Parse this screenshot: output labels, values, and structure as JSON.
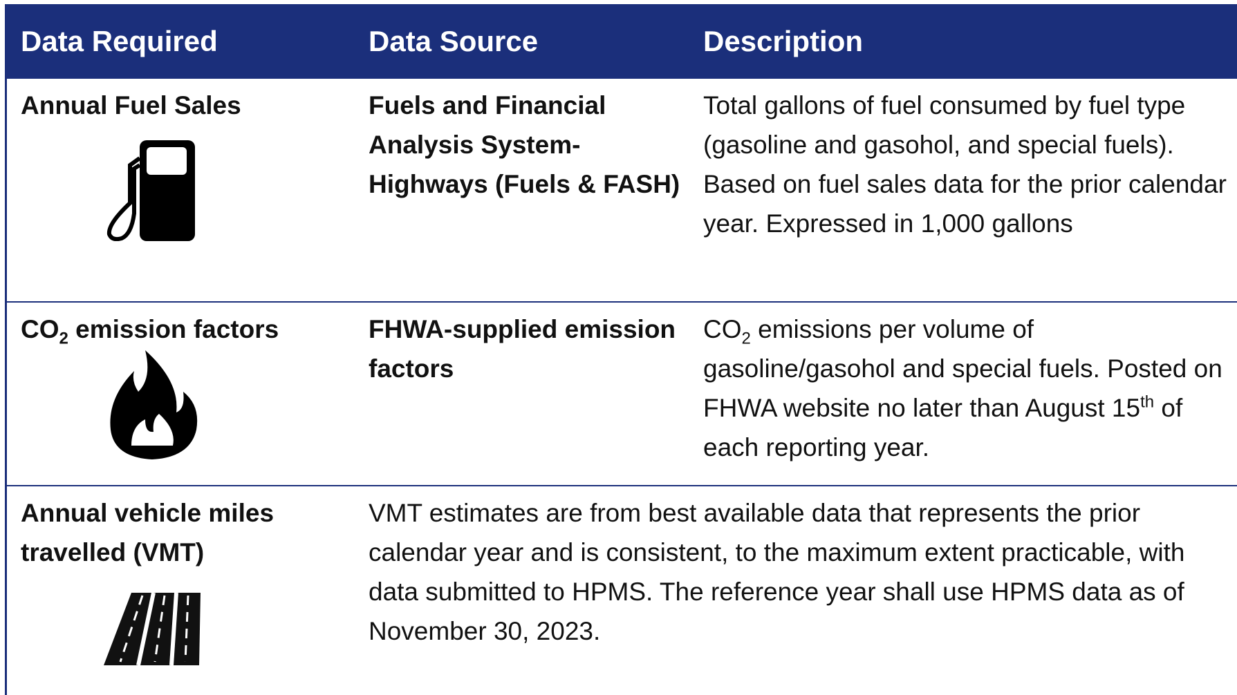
{
  "header": {
    "columns": [
      "Data Required",
      "Data Source",
      "Description"
    ]
  },
  "table": {
    "rows": [
      {
        "required": [
          "Annual Fuel Sales"
        ],
        "source": "Fuels and Financial Analysis System-Highways (Fuels & FASH)",
        "description": [
          "Total gallons of fuel consumed by fuel type (gasoline and gasohol, and special fuels). Based on fuel sales data for the prior calendar year. Expressed in 1,000 gallons"
        ]
      },
      {
        "required": [
          "CO",
          "2",
          " emission factors"
        ],
        "source": "FHWA-supplied emission factors",
        "description": [
          "CO",
          "2",
          " emissions per volume of gasoline/gasohol and special fuels. Posted on FHWA website no later than August 15",
          "th",
          " of each reporting year."
        ]
      },
      {
        "required": [
          "Annual vehicle miles travelled (VMT)"
        ],
        "source_description": "VMT estimates are from best available data that represents the prior calendar year and is consistent, to the maximum extent practicable, with data submitted to HPMS. The reference year shall use HPMS data as of November 30, 2023."
      }
    ]
  }
}
